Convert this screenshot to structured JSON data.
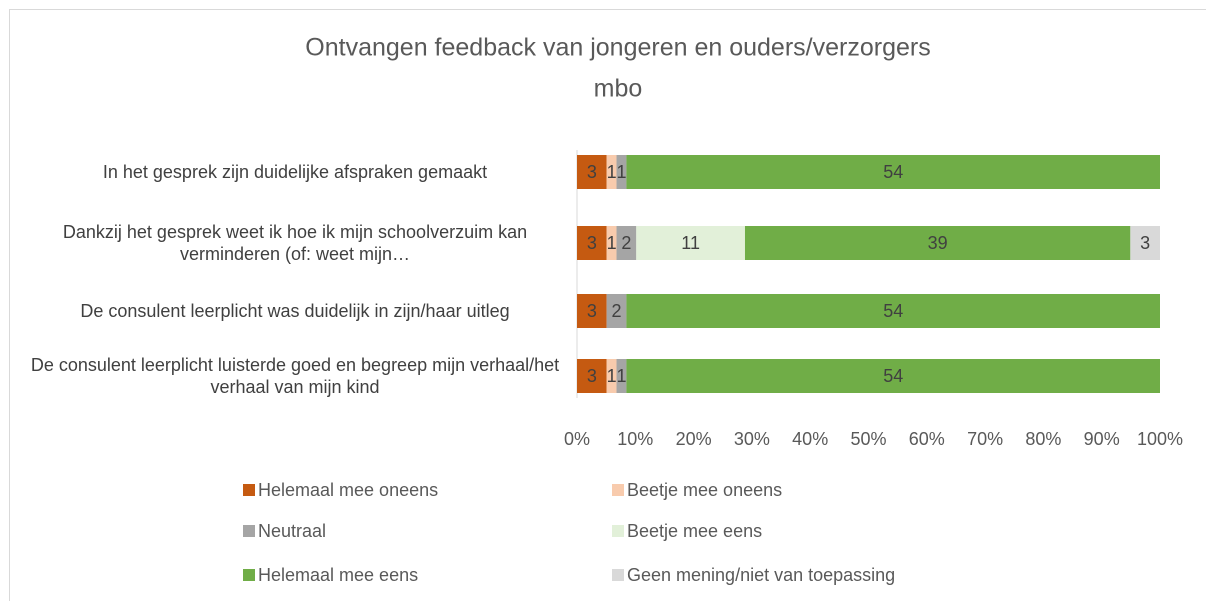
{
  "chart_data": {
    "type": "bar",
    "orientation": "horizontal",
    "stacked": "percent",
    "title": [
      "Ontvangen feedback van jongeren en ouders/verzorgers",
      "mbo"
    ],
    "categories": [
      "In het gesprek zijn duidelijke afspraken gemaakt",
      "Dankzij het gesprek weet ik hoe ik mijn schoolverzuim kan verminderen (of: weet mijn…",
      "De consulent leerplicht was duidelijk in zijn/haar uitleg",
      "De consulent leerplicht luisterde goed en begreep mijn verhaal/het verhaal van mijn kind"
    ],
    "series": [
      {
        "name": "Helemaal mee oneens",
        "color": "#c55a11",
        "values": [
          3,
          3,
          3,
          3
        ]
      },
      {
        "name": "Beetje mee oneens",
        "color": "#f8cbad",
        "values": [
          1,
          1,
          0,
          1
        ]
      },
      {
        "name": "Neutraal",
        "color": "#a5a5a5",
        "values": [
          1,
          2,
          2,
          1
        ]
      },
      {
        "name": "Beetje mee eens",
        "color": "#e2f0d9",
        "values": [
          0,
          11,
          0,
          0
        ]
      },
      {
        "name": "Helemaal mee eens",
        "color": "#70ad47",
        "values": [
          54,
          39,
          54,
          54
        ]
      },
      {
        "name": "Geen mening/niet van toepassing",
        "color": "#d9d9d9",
        "values": [
          0,
          3,
          0,
          0
        ]
      }
    ],
    "xlim": [
      0,
      100
    ],
    "xticks": [
      {
        "value": 0,
        "label": "0%"
      },
      {
        "value": 10,
        "label": "10%"
      },
      {
        "value": 20,
        "label": "20%"
      },
      {
        "value": 30,
        "label": "30%"
      },
      {
        "value": 40,
        "label": "40%"
      },
      {
        "value": 50,
        "label": "50%"
      },
      {
        "value": 60,
        "label": "60%"
      },
      {
        "value": 70,
        "label": "70%"
      },
      {
        "value": 80,
        "label": "80%"
      },
      {
        "value": 90,
        "label": "90%"
      },
      {
        "value": 100,
        "label": "100%"
      }
    ],
    "grid": false,
    "legend": "bottom"
  }
}
